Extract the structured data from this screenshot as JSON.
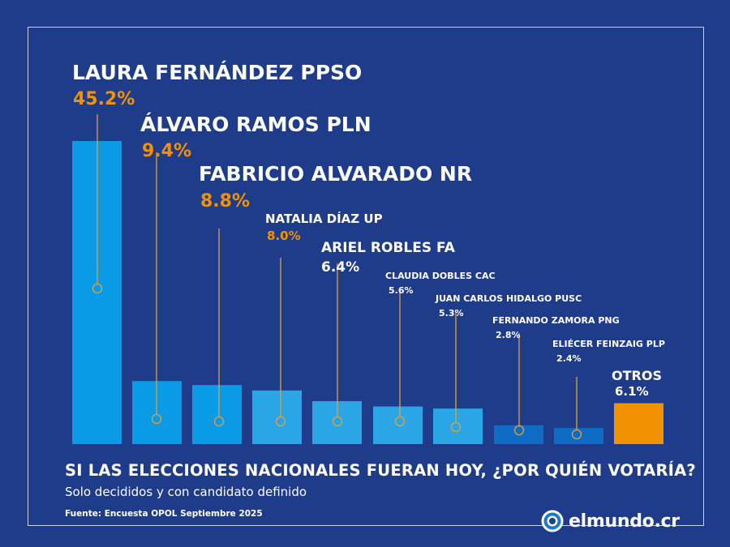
{
  "chart_data": {
    "type": "bar",
    "categories": [
      "LAURA FERNÁNDEZ PPSO",
      "ÁLVARO RAMOS PLN",
      "FABRICIO ALVARADO NR",
      "NATALIA DÍAZ UP",
      "ARIEL ROBLES FA",
      "CLAUDIA DOBLES CAC",
      "JUAN CARLOS HIDALGO PUSC",
      "FERNANDO ZAMORA PNG",
      "ELIÉCER FEINZAIG PLP",
      "OTROS"
    ],
    "values": [
      45.2,
      9.4,
      8.8,
      8.0,
      6.4,
      5.6,
      5.3,
      2.8,
      2.4,
      6.1
    ],
    "value_labels": [
      "45.2%",
      "9.4%",
      "8.8%",
      "8.0%",
      "6.4%",
      "5.6%",
      "5.3%",
      "2.8%",
      "2.4%",
      "6.1%"
    ],
    "bar_colors": [
      "#0a9be6",
      "#0a9be6",
      "#0a9be6",
      "#2aa6e6",
      "#2aa6e6",
      "#2aa6e6",
      "#2aa6e6",
      "#0e6cc4",
      "#0e6cc4",
      "#f39200"
    ],
    "label_value_colors": [
      "#f39200",
      "#f39200",
      "#f39200",
      "#f39200",
      "#ffffff",
      "#ffffff",
      "#ffffff",
      "#ffffff",
      "#ffffff",
      "#ffffff"
    ],
    "title": "SI LAS ELECCIONES NACIONALES FUERAN HOY, ¿POR QUIÉN VOTARÍA?",
    "subtitle": "Solo decididos y con candidato definido",
    "xlabel": "",
    "ylabel": ""
  },
  "source": "Fuente: Encuesta OPOL Septiembre 2025",
  "brand": {
    "name": "elmundo.cr",
    "icon": "eye-logo-icon"
  },
  "colors": {
    "background": "#1f3c8b",
    "accent": "#f39200",
    "line": "#e0a13a"
  }
}
